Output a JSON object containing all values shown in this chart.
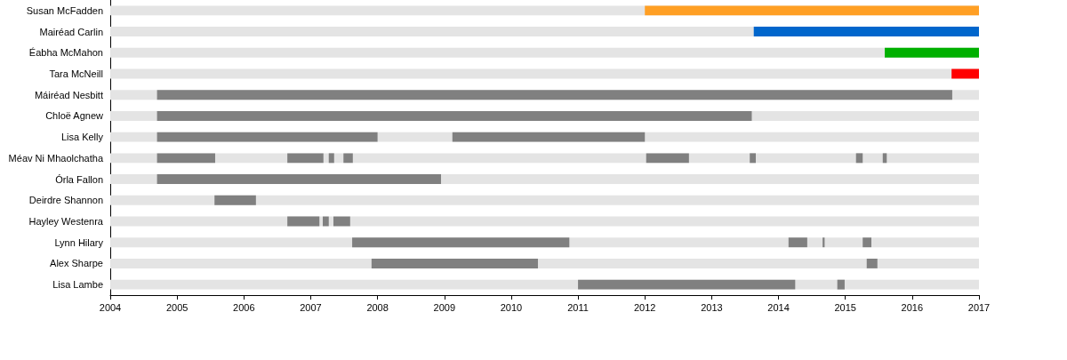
{
  "chart_data": {
    "type": "bar",
    "orientation": "horizontal",
    "categories": [
      "Susan McFadden",
      "Mairéad Carlin",
      "Éabha McMahon",
      "Tara McNeill",
      "Máiréad Nesbitt",
      "Chloë Agnew",
      "Lisa Kelly",
      "Méav Ni Mhaolchatha",
      "Órla Fallon",
      "Deirdre Shannon",
      "Hayley Westenra",
      "Lynn Hilary",
      "Alex Sharpe",
      "Lisa Lambe"
    ],
    "xlim": [
      2004,
      2017
    ],
    "xticks": [
      2004,
      2005,
      2006,
      2007,
      2008,
      2009,
      2010,
      2011,
      2012,
      2013,
      2014,
      2015,
      2016,
      2017
    ],
    "series": [
      {
        "colors": [
          "#ff9f24",
          "#0066cc",
          "#00b000",
          "#ff0000",
          "#808080",
          "#808080",
          "#808080",
          "#808080",
          "#808080",
          "#808080",
          "#808080",
          "#808080",
          "#808080",
          "#808080"
        ],
        "base": [
          2012.0,
          2013.63,
          2015.59,
          2016.59,
          2004.7,
          2004.7,
          2004.7,
          2004.7,
          2004.7,
          2005.56,
          2006.65,
          2007.62,
          2007.91,
          2011.0
        ],
        "values": [
          5.0,
          3.37,
          1.41,
          0.41,
          11.9,
          8.9,
          3.3,
          0.87,
          4.25,
          0.62,
          0.48,
          3.25,
          2.49,
          3.25
        ]
      },
      {
        "color": "#808080",
        "base": [
          null,
          null,
          null,
          null,
          null,
          null,
          2009.12,
          2006.65,
          null,
          null,
          2007.18,
          2014.15,
          2015.32,
          2014.88
        ],
        "values": [
          null,
          null,
          null,
          null,
          null,
          null,
          2.88,
          0.54,
          null,
          null,
          0.09,
          0.28,
          0.16,
          0.11
        ]
      },
      {
        "color": "#808080",
        "base": [
          null,
          null,
          null,
          null,
          null,
          null,
          null,
          2007.27,
          null,
          null,
          2007.34,
          2014.66,
          null,
          null
        ],
        "values": [
          null,
          null,
          null,
          null,
          null,
          null,
          null,
          0.08,
          null,
          null,
          0.25,
          0.03,
          null,
          null
        ]
      },
      {
        "color": "#808080",
        "base": [
          null,
          null,
          null,
          null,
          null,
          null,
          null,
          2007.49,
          null,
          null,
          null,
          2015.26,
          null,
          null
        ],
        "values": [
          null,
          null,
          null,
          null,
          null,
          null,
          null,
          0.14,
          null,
          null,
          null,
          0.13,
          null,
          null
        ]
      },
      {
        "color": "#808080",
        "base": [
          null,
          null,
          null,
          null,
          null,
          null,
          null,
          2012.02,
          null,
          null,
          null,
          null,
          null,
          null
        ],
        "values": [
          null,
          null,
          null,
          null,
          null,
          null,
          null,
          0.64,
          null,
          null,
          null,
          null,
          null,
          null
        ]
      },
      {
        "color": "#808080",
        "base": [
          null,
          null,
          null,
          null,
          null,
          null,
          null,
          2013.57,
          null,
          null,
          null,
          null,
          null,
          null
        ],
        "values": [
          null,
          null,
          null,
          null,
          null,
          null,
          null,
          0.09,
          null,
          null,
          null,
          null,
          null,
          null
        ]
      },
      {
        "color": "#808080",
        "base": [
          null,
          null,
          null,
          null,
          null,
          null,
          null,
          2015.16,
          null,
          null,
          null,
          null,
          null,
          null
        ],
        "values": [
          null,
          null,
          null,
          null,
          null,
          null,
          null,
          0.1,
          null,
          null,
          null,
          null,
          null,
          null
        ]
      },
      {
        "color": "#808080",
        "base": [
          null,
          null,
          null,
          null,
          null,
          null,
          null,
          2015.56,
          null,
          null,
          null,
          null,
          null,
          null
        ],
        "values": [
          null,
          null,
          null,
          null,
          null,
          null,
          null,
          0.06,
          null,
          null,
          null,
          null,
          null,
          null
        ]
      }
    ]
  }
}
